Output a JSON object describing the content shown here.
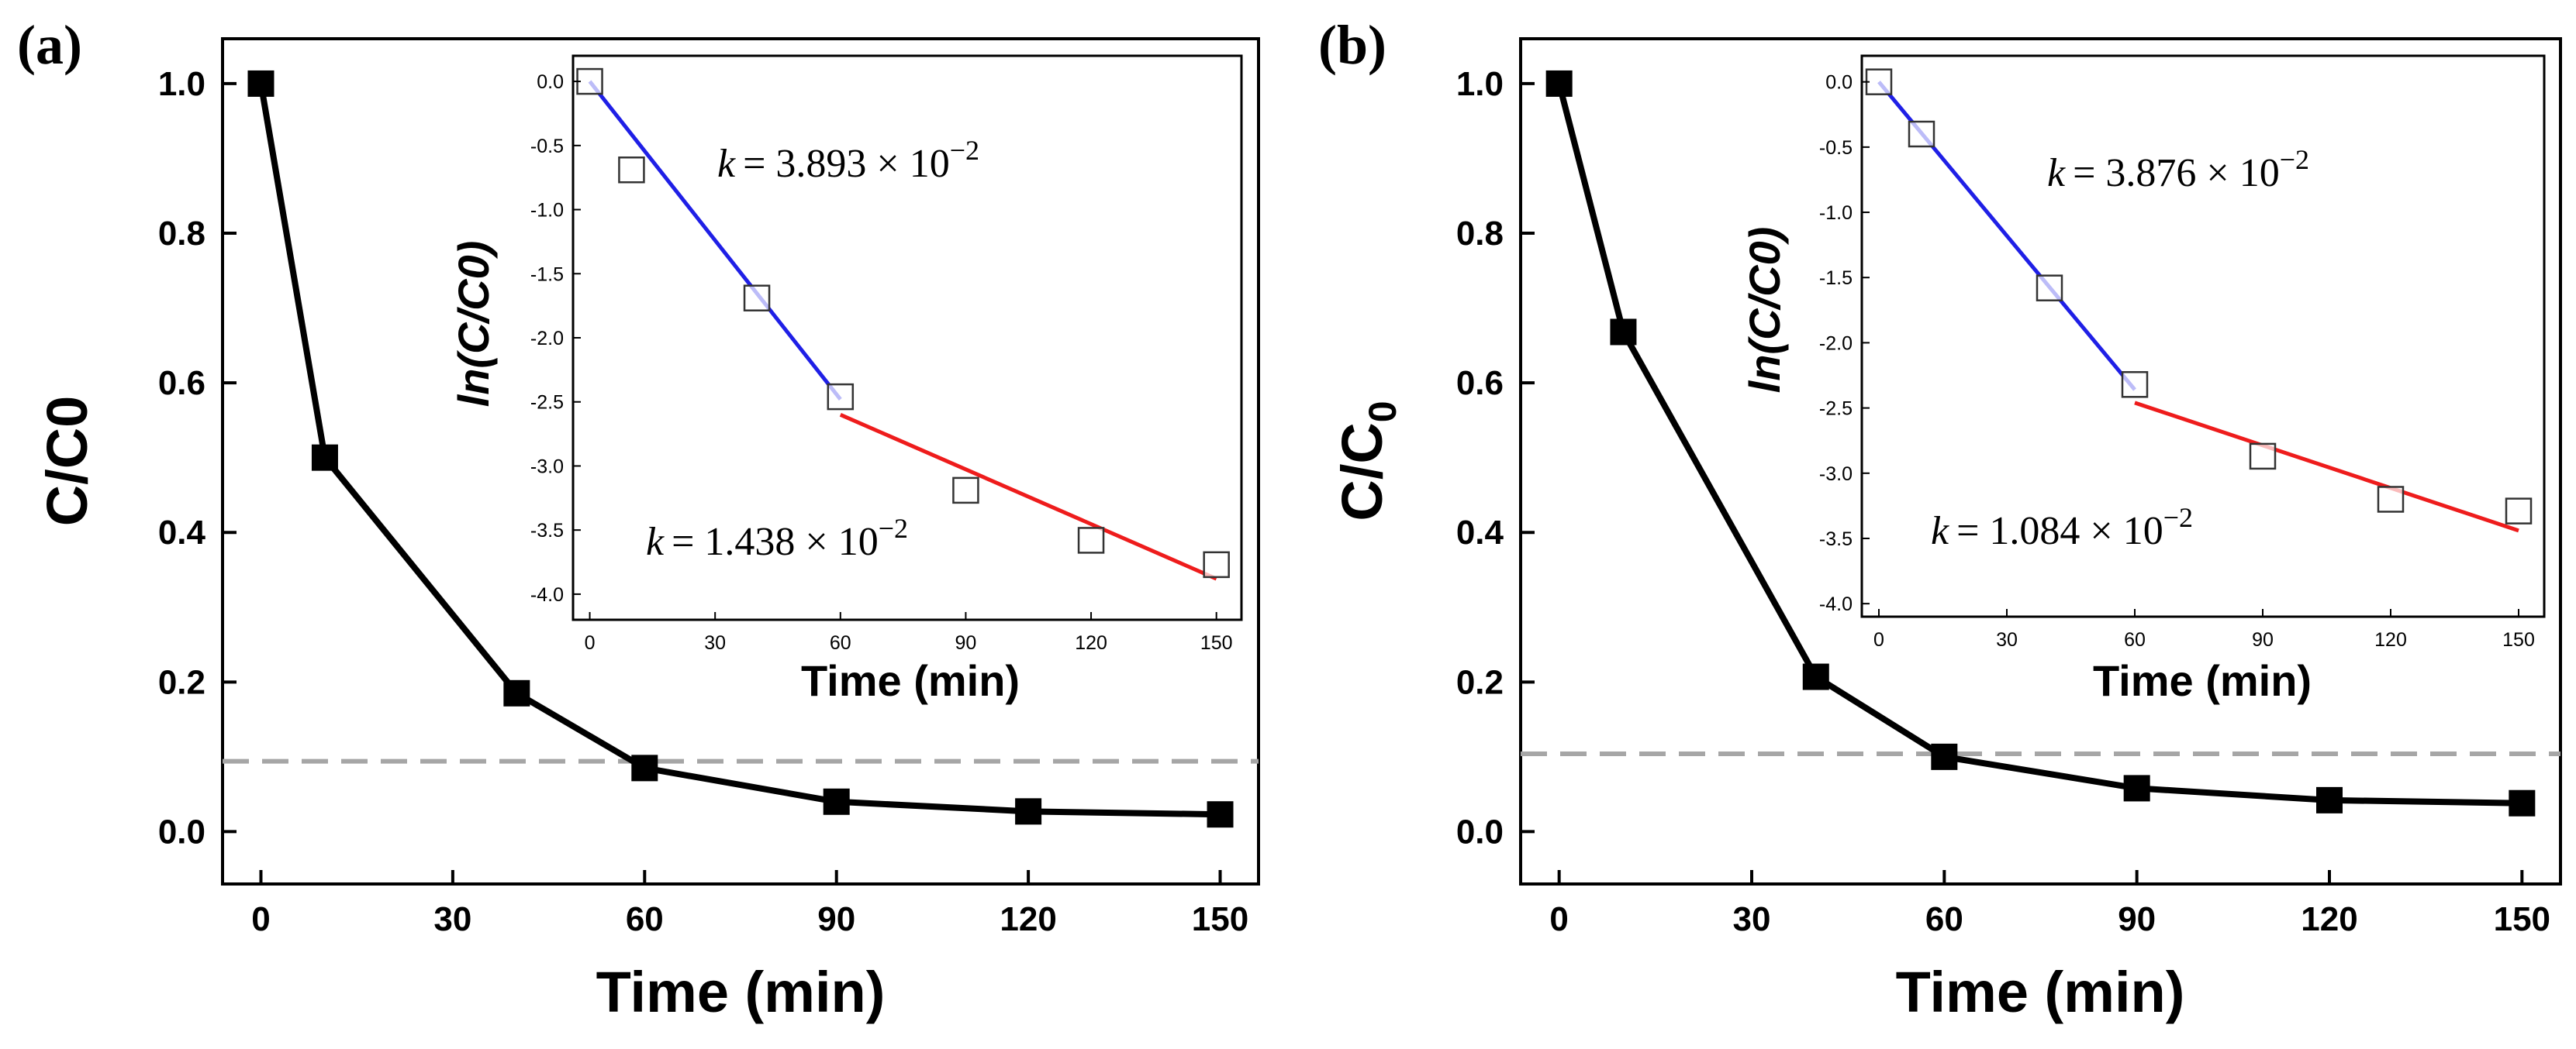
{
  "chart_data": [
    {
      "panel_label": "(a)",
      "type": "line",
      "xlabel": "Time (min)",
      "ylabel": "C/C0",
      "xlim": [
        -6,
        156
      ],
      "ylim": [
        -0.07,
        1.06
      ],
      "xticks": [
        0,
        30,
        60,
        90,
        120,
        150
      ],
      "xtick_labels": [
        "0",
        "30",
        "60",
        "90",
        "120",
        "150"
      ],
      "yticks": [
        0.0,
        0.2,
        0.4,
        0.6,
        0.8,
        1.0
      ],
      "ytick_labels": [
        "0.0",
        "0.2",
        "0.4",
        "0.6",
        "0.8",
        "1.0"
      ],
      "x": [
        0,
        10,
        40,
        60,
        90,
        120,
        150
      ],
      "y": [
        1.0,
        0.5,
        0.185,
        0.085,
        0.04,
        0.027,
        0.023
      ],
      "reference_line_y": 0.094,
      "colors": {
        "series": "#000000",
        "reference": "#a6a6a6"
      },
      "inset": {
        "type": "scatter",
        "xlabel": "Time (min)",
        "ylabel": "ln(C/C0)",
        "xlim": [
          -4,
          156
        ],
        "ylim": [
          -4.2,
          0.2
        ],
        "xticks": [
          0,
          30,
          60,
          90,
          120,
          150
        ],
        "xtick_labels": [
          "0",
          "30",
          "60",
          "90",
          "120",
          "150"
        ],
        "yticks": [
          0.0,
          -0.5,
          -1.0,
          -1.5,
          -2.0,
          -2.5,
          -3.0,
          -3.5,
          -4.0
        ],
        "ytick_labels": [
          "0.0",
          "-0.5",
          "-1.0",
          "-1.5",
          "-2.0",
          "-2.5",
          "-3.0",
          "-3.5",
          "-4.0"
        ],
        "x": [
          0,
          10,
          40,
          60,
          90,
          120,
          150
        ],
        "y": [
          0.0,
          -0.69,
          -1.69,
          -2.46,
          -3.19,
          -3.58,
          -3.77
        ],
        "fits": [
          {
            "name": "early",
            "color": "#1f1fe6",
            "x": [
              0,
              60
            ],
            "y": [
              0.0,
              -2.48
            ]
          },
          {
            "name": "late",
            "color": "#ee1c1c",
            "x": [
              60,
              150
            ],
            "y": [
              -2.6,
              -3.88
            ]
          }
        ],
        "annotations": [
          {
            "k_symbol": "k",
            "k_value": "= 3.893 × 10",
            "exponent": "−2"
          },
          {
            "k_symbol": "k",
            "k_value": "= 1.438 × 10",
            "exponent": "−2"
          }
        ]
      }
    },
    {
      "panel_label": "(b)",
      "type": "line",
      "xlabel": "Time (min)",
      "ylabel": "C/C",
      "ylabel_subscript": "0",
      "xlim": [
        -6,
        156
      ],
      "ylim": [
        -0.07,
        1.06
      ],
      "xticks": [
        0,
        30,
        60,
        90,
        120,
        150
      ],
      "xtick_labels": [
        "0",
        "30",
        "60",
        "90",
        "120",
        "150"
      ],
      "yticks": [
        0.0,
        0.2,
        0.4,
        0.6,
        0.8,
        1.0
      ],
      "ytick_labels": [
        "0.0",
        "0.2",
        "0.4",
        "0.6",
        "0.8",
        "1.0"
      ],
      "x": [
        0,
        10,
        40,
        60,
        90,
        120,
        150
      ],
      "y": [
        1.0,
        0.668,
        0.207,
        0.1,
        0.058,
        0.042,
        0.038
      ],
      "reference_line_y": 0.104,
      "colors": {
        "series": "#000000",
        "reference": "#a6a6a6"
      },
      "inset": {
        "type": "scatter",
        "xlabel": "Time (min)",
        "ylabel": "ln(C/C0)",
        "xlim": [
          -4,
          156
        ],
        "ylim": [
          -4.1,
          0.2
        ],
        "xticks": [
          0,
          30,
          60,
          90,
          120,
          150
        ],
        "xtick_labels": [
          "0",
          "30",
          "60",
          "90",
          "120",
          "150"
        ],
        "yticks": [
          0.0,
          -0.5,
          -1.0,
          -1.5,
          -2.0,
          -2.5,
          -3.0,
          -3.5,
          -4.0
        ],
        "ytick_labels": [
          "0.0",
          "-0.5",
          "-1.0",
          "-1.5",
          "-2.0",
          "-2.5",
          "-3.0",
          "-3.5",
          "-4.0"
        ],
        "x": [
          0,
          10,
          40,
          60,
          90,
          120,
          150
        ],
        "y": [
          0.0,
          -0.4,
          -1.58,
          -2.32,
          -2.87,
          -3.2,
          -3.29
        ],
        "fits": [
          {
            "name": "early",
            "color": "#1f1fe6",
            "x": [
              0,
              60
            ],
            "y": [
              0.0,
              -2.36
            ]
          },
          {
            "name": "late",
            "color": "#ee1c1c",
            "x": [
              60,
              150
            ],
            "y": [
              -2.46,
              -3.44
            ]
          }
        ],
        "annotations": [
          {
            "k_symbol": "k",
            "k_value": "= 3.876 × 10",
            "exponent": "−2"
          },
          {
            "k_symbol": "k",
            "k_value": "= 1.084 × 10",
            "exponent": "−2"
          }
        ]
      }
    }
  ]
}
